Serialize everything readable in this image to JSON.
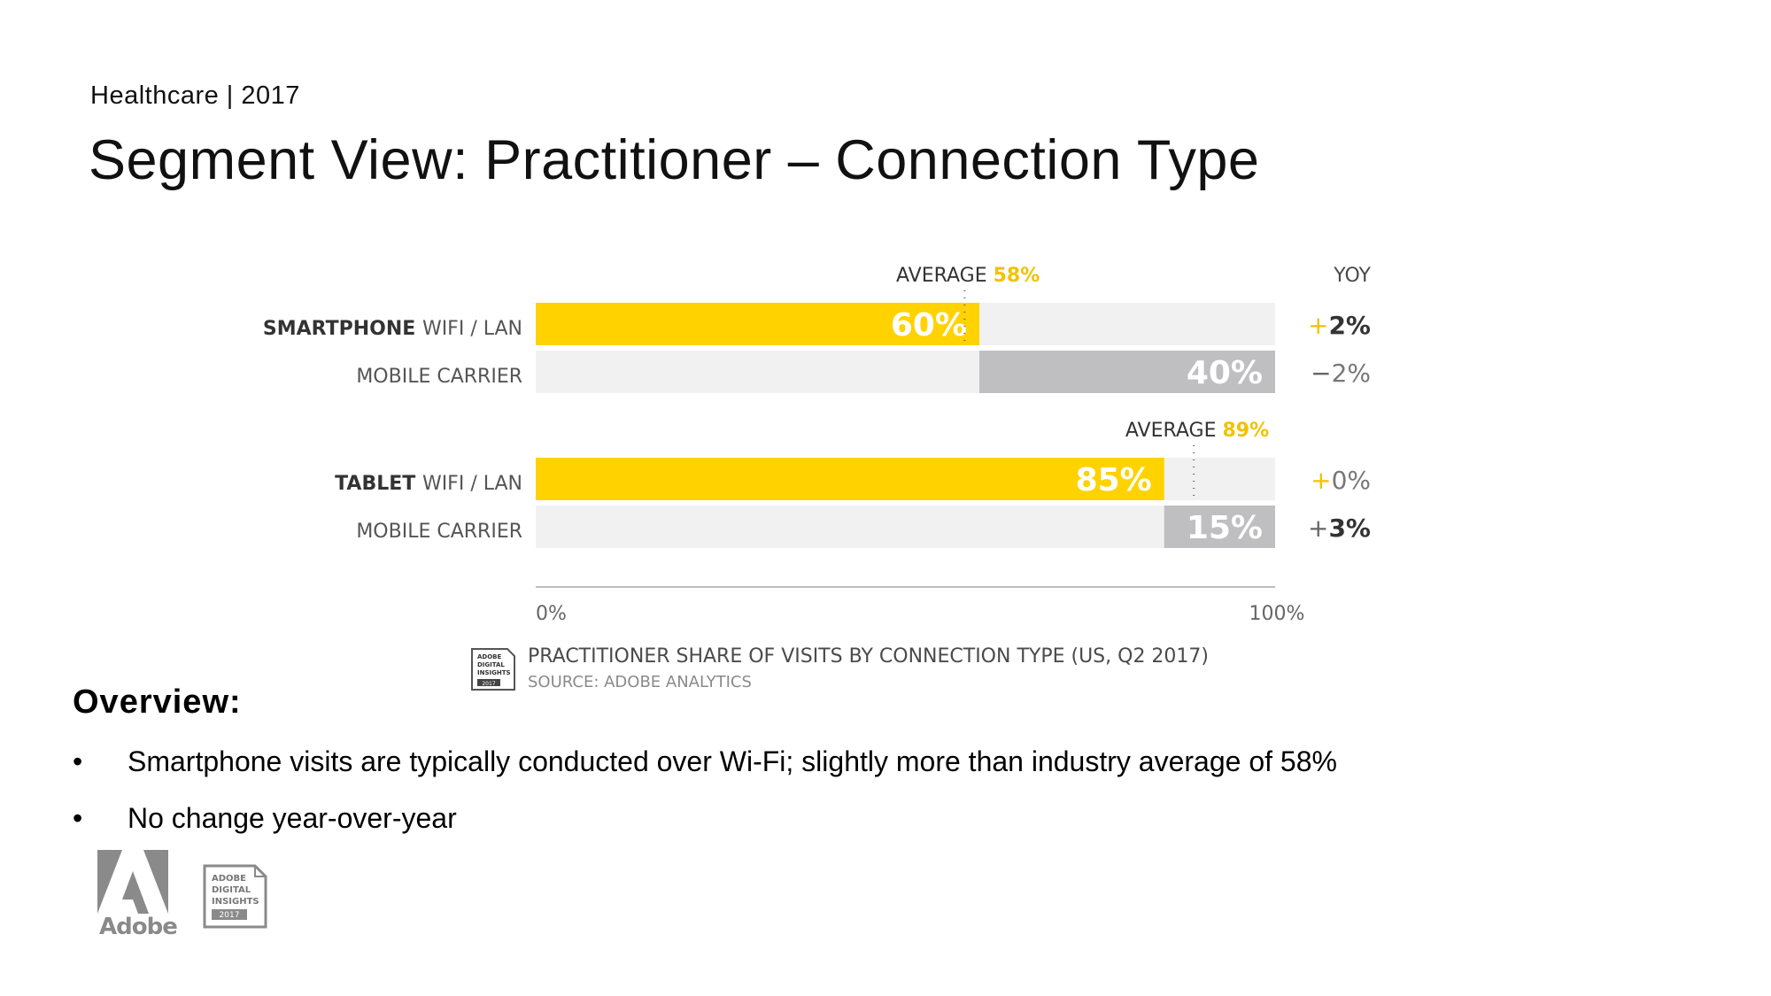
{
  "header": {
    "subtitle": "Healthcare | 2017",
    "title": "Segment View: Practitioner – Connection Type"
  },
  "chart_data": {
    "type": "bar",
    "orientation": "horizontal",
    "stacked": true,
    "xlim": [
      0,
      100
    ],
    "x_tick_labels": [
      "0%",
      "100%"
    ],
    "yoy_header": "YOY",
    "groups": [
      {
        "device": "SMARTPHONE",
        "average_label": "AVERAGE",
        "average_value": 58,
        "average_text": "58%",
        "rows": [
          {
            "label": "WIFI / LAN",
            "value": 60,
            "value_label": "60%",
            "yoy_sign": "+",
            "yoy_value": "2%",
            "yoy_bold": true
          },
          {
            "label": "MOBILE CARRIER",
            "value": 40,
            "value_label": "40%",
            "yoy_sign": "−",
            "yoy_value": "2%",
            "yoy_bold": false
          }
        ]
      },
      {
        "device": "TABLET",
        "average_label": "AVERAGE",
        "average_value": 89,
        "average_text": "89%",
        "rows": [
          {
            "label": "WIFI / LAN",
            "value": 85,
            "value_label": "85%",
            "yoy_sign": "+",
            "yoy_value": "0%",
            "yoy_bold": false
          },
          {
            "label": "MOBILE CARRIER",
            "value": 15,
            "value_label": "15%",
            "yoy_sign": "+",
            "yoy_value": "3%",
            "yoy_bold": true
          }
        ]
      }
    ],
    "colors": {
      "wifi": "#FFD200",
      "mobile": "#BFBFC1",
      "track": "#F0F1F0",
      "accent": "#F2C200"
    }
  },
  "legend": {
    "title": "PRACTITIONER SHARE OF VISITS BY CONNECTION TYPE (US, Q2 2017)",
    "source": "SOURCE: ADOBE ANALYTICS",
    "badge_lines": [
      "ADOBE",
      "DIGITAL",
      "INSIGHTS"
    ],
    "badge_year": "2017"
  },
  "overview": {
    "heading": "Overview:",
    "bullet_symbol": "•",
    "bullets": [
      "Smartphone visits are typically conducted over Wi-Fi; slightly more than industry average of 58%",
      "No change year-over-year"
    ]
  },
  "footer": {
    "adobe_word": "Adobe",
    "badge_lines": [
      "ADOBE",
      "DIGITAL",
      "INSIGHTS"
    ],
    "badge_year": "2017"
  }
}
